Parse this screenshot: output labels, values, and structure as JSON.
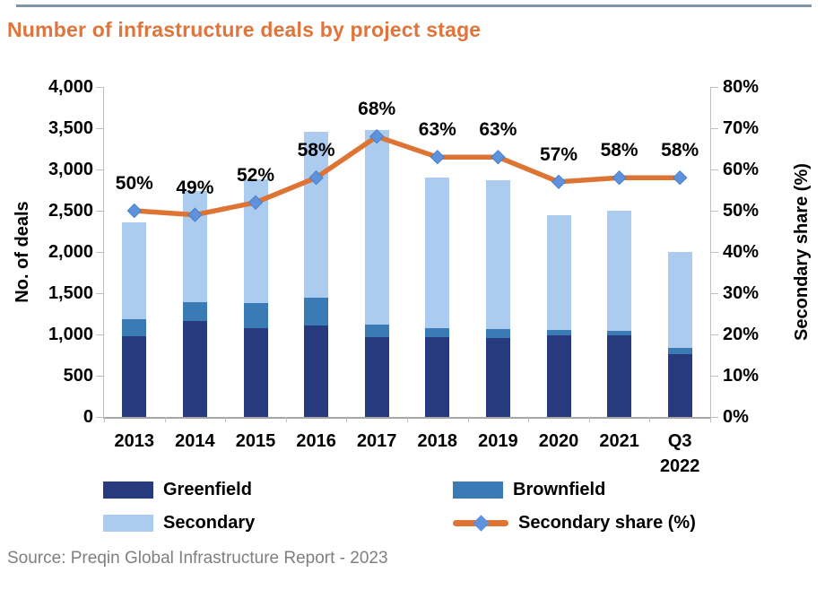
{
  "page": {
    "title": "Number of infrastructure deals by project stage",
    "source": "Source: Preqin Global Infrastructure Report - 2023"
  },
  "colors": {
    "title": "#e0743a",
    "top_border": "#7d97a6",
    "source_text": "#7f7f7f",
    "axis_line": "#bfbfbf",
    "baseline": "#a6a6a6",
    "greenfield": "#273a7e",
    "brownfield": "#3a7ab5",
    "secondary": "#abcbef",
    "share_line": "#dd7434",
    "share_marker": "#5f92dd"
  },
  "chart_data": {
    "type": "bar",
    "subtype": "stacked-bars-with-secondary-axis-line",
    "title": "Number of infrastructure deals by project stage",
    "categories": [
      "2013",
      "2014",
      "2015",
      "2016",
      "2017",
      "2018",
      "2019",
      "2020",
      "2021",
      "Q3\n2022"
    ],
    "series": [
      {
        "name": "Greenfield",
        "type": "bar",
        "color": "#273a7e",
        "values": [
          980,
          1160,
          1080,
          1110,
          970,
          970,
          960,
          985,
          990,
          765
        ]
      },
      {
        "name": "Brownfield",
        "type": "bar",
        "color": "#3a7ab5",
        "values": [
          200,
          235,
          300,
          340,
          145,
          110,
          100,
          65,
          55,
          70
        ]
      },
      {
        "name": "Secondary",
        "type": "bar",
        "color": "#abcbef",
        "values": [
          1180,
          1345,
          1500,
          2010,
          2365,
          1820,
          1810,
          1400,
          1455,
          1165
        ]
      },
      {
        "name": "Secondary share (%)",
        "type": "line",
        "axis": "right",
        "color": "#dd7434",
        "marker": "diamond",
        "marker_color": "#5f92dd",
        "values": [
          50,
          49,
          52,
          58,
          68,
          63,
          63,
          57,
          58,
          58
        ],
        "labels": [
          "50%",
          "49%",
          "52%",
          "58%",
          "68%",
          "63%",
          "63%",
          "57%",
          "58%",
          "58%"
        ]
      }
    ],
    "bar_totals": [
      2360,
      2740,
      2880,
      3460,
      3480,
      2900,
      2870,
      2450,
      2500,
      2000
    ],
    "left_axis": {
      "title": "No. of deals",
      "min": 0,
      "max": 4000,
      "step": 500,
      "tick_labels": [
        "0",
        "500",
        "1,000",
        "1,500",
        "2,000",
        "2,500",
        "3,000",
        "3,500",
        "4,000"
      ]
    },
    "right_axis": {
      "title": "Secondary share (%)",
      "min": 0,
      "max": 80,
      "step": 10,
      "tick_labels": [
        "0%",
        "10%",
        "20%",
        "30%",
        "40%",
        "50%",
        "60%",
        "70%",
        "80%"
      ]
    },
    "grid": false,
    "legend_position": "bottom",
    "legend": [
      {
        "label": "Greenfield",
        "swatch": "rect",
        "color": "#273a7e"
      },
      {
        "label": "Brownfield",
        "swatch": "rect",
        "color": "#3a7ab5"
      },
      {
        "label": "Secondary",
        "swatch": "rect",
        "color": "#abcbef"
      },
      {
        "label": "Secondary share (%)",
        "swatch": "line-marker",
        "color": "#dd7434",
        "marker_color": "#5f92dd"
      }
    ]
  }
}
